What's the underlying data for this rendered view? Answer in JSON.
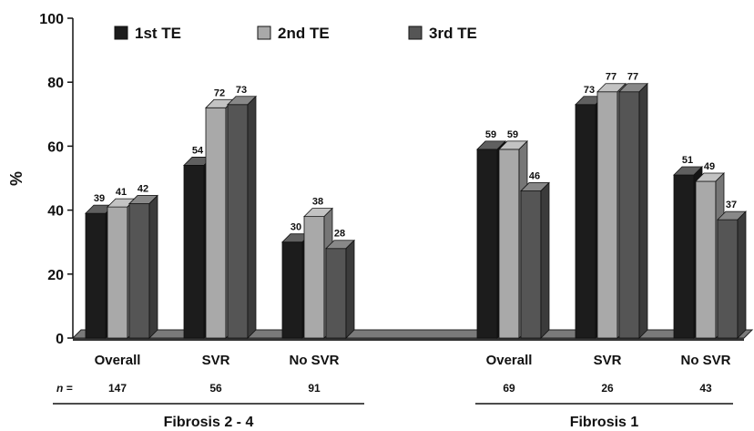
{
  "chart_data": {
    "type": "bar",
    "ylabel": "%",
    "ylim": [
      0,
      100
    ],
    "yticks": [
      0,
      20,
      40,
      60,
      80,
      100
    ],
    "grid": false,
    "legend_position": "top",
    "series": [
      {
        "name": "1st TE",
        "color": "#1c1c1c"
      },
      {
        "name": "2nd TE",
        "color": "#a9a9a9"
      },
      {
        "name": "3rd TE",
        "color": "#555555"
      }
    ],
    "n_prefix": "n =",
    "groups": [
      {
        "name": "Fibrosis 2 - 4",
        "categories": [
          {
            "label": "Overall",
            "n": "147",
            "values": [
              39,
              41,
              42
            ]
          },
          {
            "label": "SVR",
            "n": "56",
            "values": [
              54,
              72,
              73
            ]
          },
          {
            "label": "No SVR",
            "n": "91",
            "values": [
              30,
              38,
              28
            ]
          }
        ]
      },
      {
        "name": "Fibrosis 1",
        "categories": [
          {
            "label": "Overall",
            "n": "69",
            "values": [
              59,
              59,
              46
            ]
          },
          {
            "label": "SVR",
            "n": "26",
            "values": [
              73,
              77,
              77
            ]
          },
          {
            "label": "No SVR",
            "n": "43",
            "values": [
              51,
              49,
              37
            ]
          }
        ]
      }
    ]
  }
}
